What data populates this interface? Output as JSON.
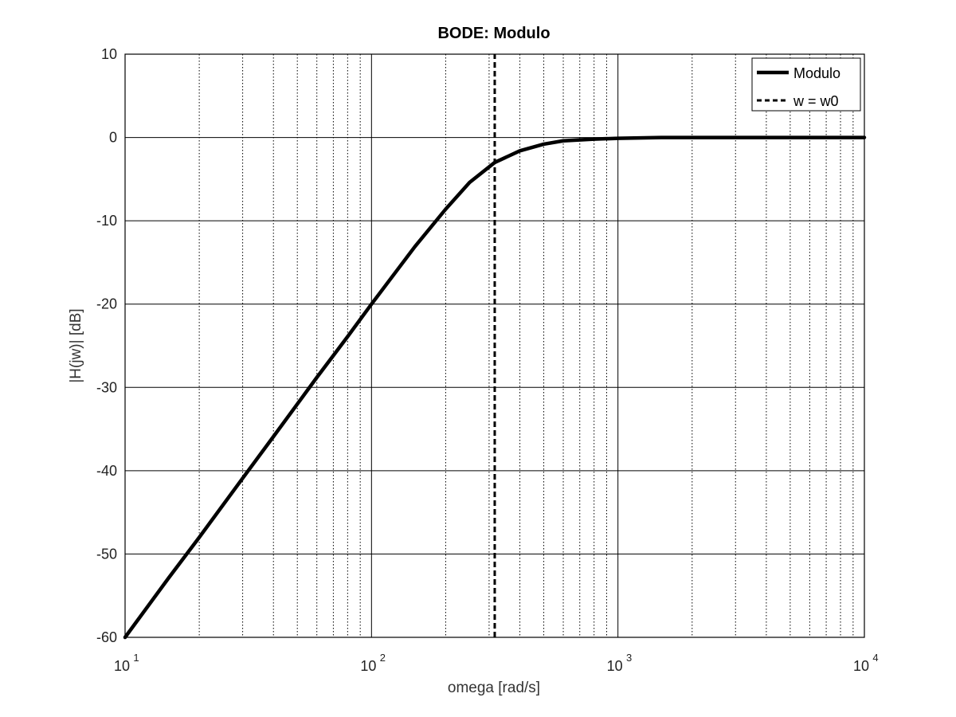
{
  "chart_data": {
    "type": "line",
    "title": "BODE: Modulo",
    "xlabel": "omega [rad/s]",
    "ylabel": "|H(jw)| [dB]",
    "xscale": "log",
    "xlim": [
      10,
      10000
    ],
    "ylim": [
      -60,
      10
    ],
    "grid": true,
    "legend_position": "top-right",
    "x_ticks": [
      {
        "base": "10",
        "exp": "1"
      },
      {
        "base": "10",
        "exp": "2"
      },
      {
        "base": "10",
        "exp": "3"
      },
      {
        "base": "10",
        "exp": "4"
      }
    ],
    "y_ticks": [
      "10",
      "0",
      "-10",
      "-20",
      "-30",
      "-40",
      "-50",
      "-60"
    ],
    "series": [
      {
        "name": "Modulo",
        "style": "solid",
        "color": "#000000",
        "x": [
          10,
          15,
          20,
          30,
          40,
          50,
          60,
          80,
          100,
          150,
          200,
          250,
          316.2,
          400,
          500,
          600,
          800,
          1000,
          1500,
          2000,
          3000,
          5000,
          10000
        ],
        "y": [
          -60,
          -52.9,
          -48.0,
          -40.9,
          -35.9,
          -32.0,
          -28.8,
          -23.9,
          -20.0,
          -13.1,
          -8.6,
          -5.4,
          -3.0,
          -1.6,
          -0.8,
          -0.4,
          -0.2,
          -0.1,
          0,
          0,
          0,
          0,
          0
        ]
      },
      {
        "name": "w = w0",
        "style": "dashed",
        "color": "#000000",
        "x": [
          316.2,
          316.2
        ],
        "y": [
          -60,
          10
        ]
      }
    ]
  }
}
